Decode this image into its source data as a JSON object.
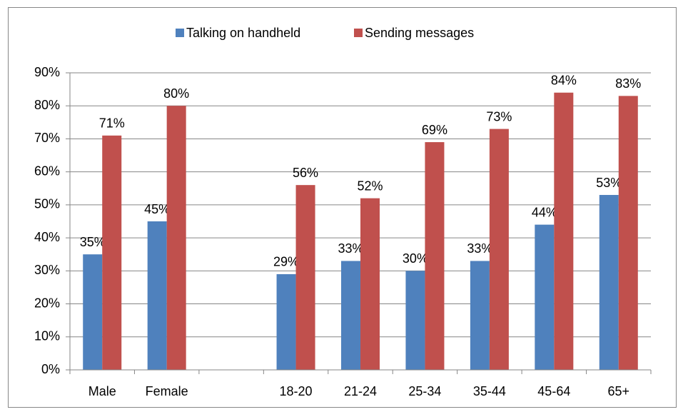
{
  "chart_data": {
    "type": "bar",
    "categories": [
      "Male",
      "Female",
      null,
      "18-20",
      "21-24",
      "25-34",
      "35-44",
      "45-64",
      "65+"
    ],
    "series": [
      {
        "name": "Talking on handheld",
        "color": "#4f81bd",
        "values": [
          35,
          45,
          null,
          29,
          33,
          30,
          33,
          44,
          53
        ],
        "value_labels": [
          "35%",
          "45%",
          null,
          "29%",
          "33%",
          "30%",
          "33%",
          "44%",
          "53%"
        ]
      },
      {
        "name": "Sending messages",
        "color": "#c0504d",
        "values": [
          71,
          80,
          null,
          56,
          52,
          69,
          73,
          84,
          83
        ],
        "value_labels": [
          "71%",
          "80%",
          null,
          "56%",
          "52%",
          "69%",
          "73%",
          "84%",
          "83%"
        ]
      }
    ],
    "ylim": [
      0,
      90
    ],
    "yticks": [
      {
        "value": 0,
        "label": "0%"
      },
      {
        "value": 10,
        "label": "10%"
      },
      {
        "value": 20,
        "label": "20%"
      },
      {
        "value": 30,
        "label": "30%"
      },
      {
        "value": 40,
        "label": "40%"
      },
      {
        "value": 50,
        "label": "50%"
      },
      {
        "value": 60,
        "label": "60%"
      },
      {
        "value": 70,
        "label": "70%"
      },
      {
        "value": 80,
        "label": "80%"
      },
      {
        "value": 90,
        "label": "90%"
      }
    ],
    "grid": true,
    "legend": "top"
  }
}
